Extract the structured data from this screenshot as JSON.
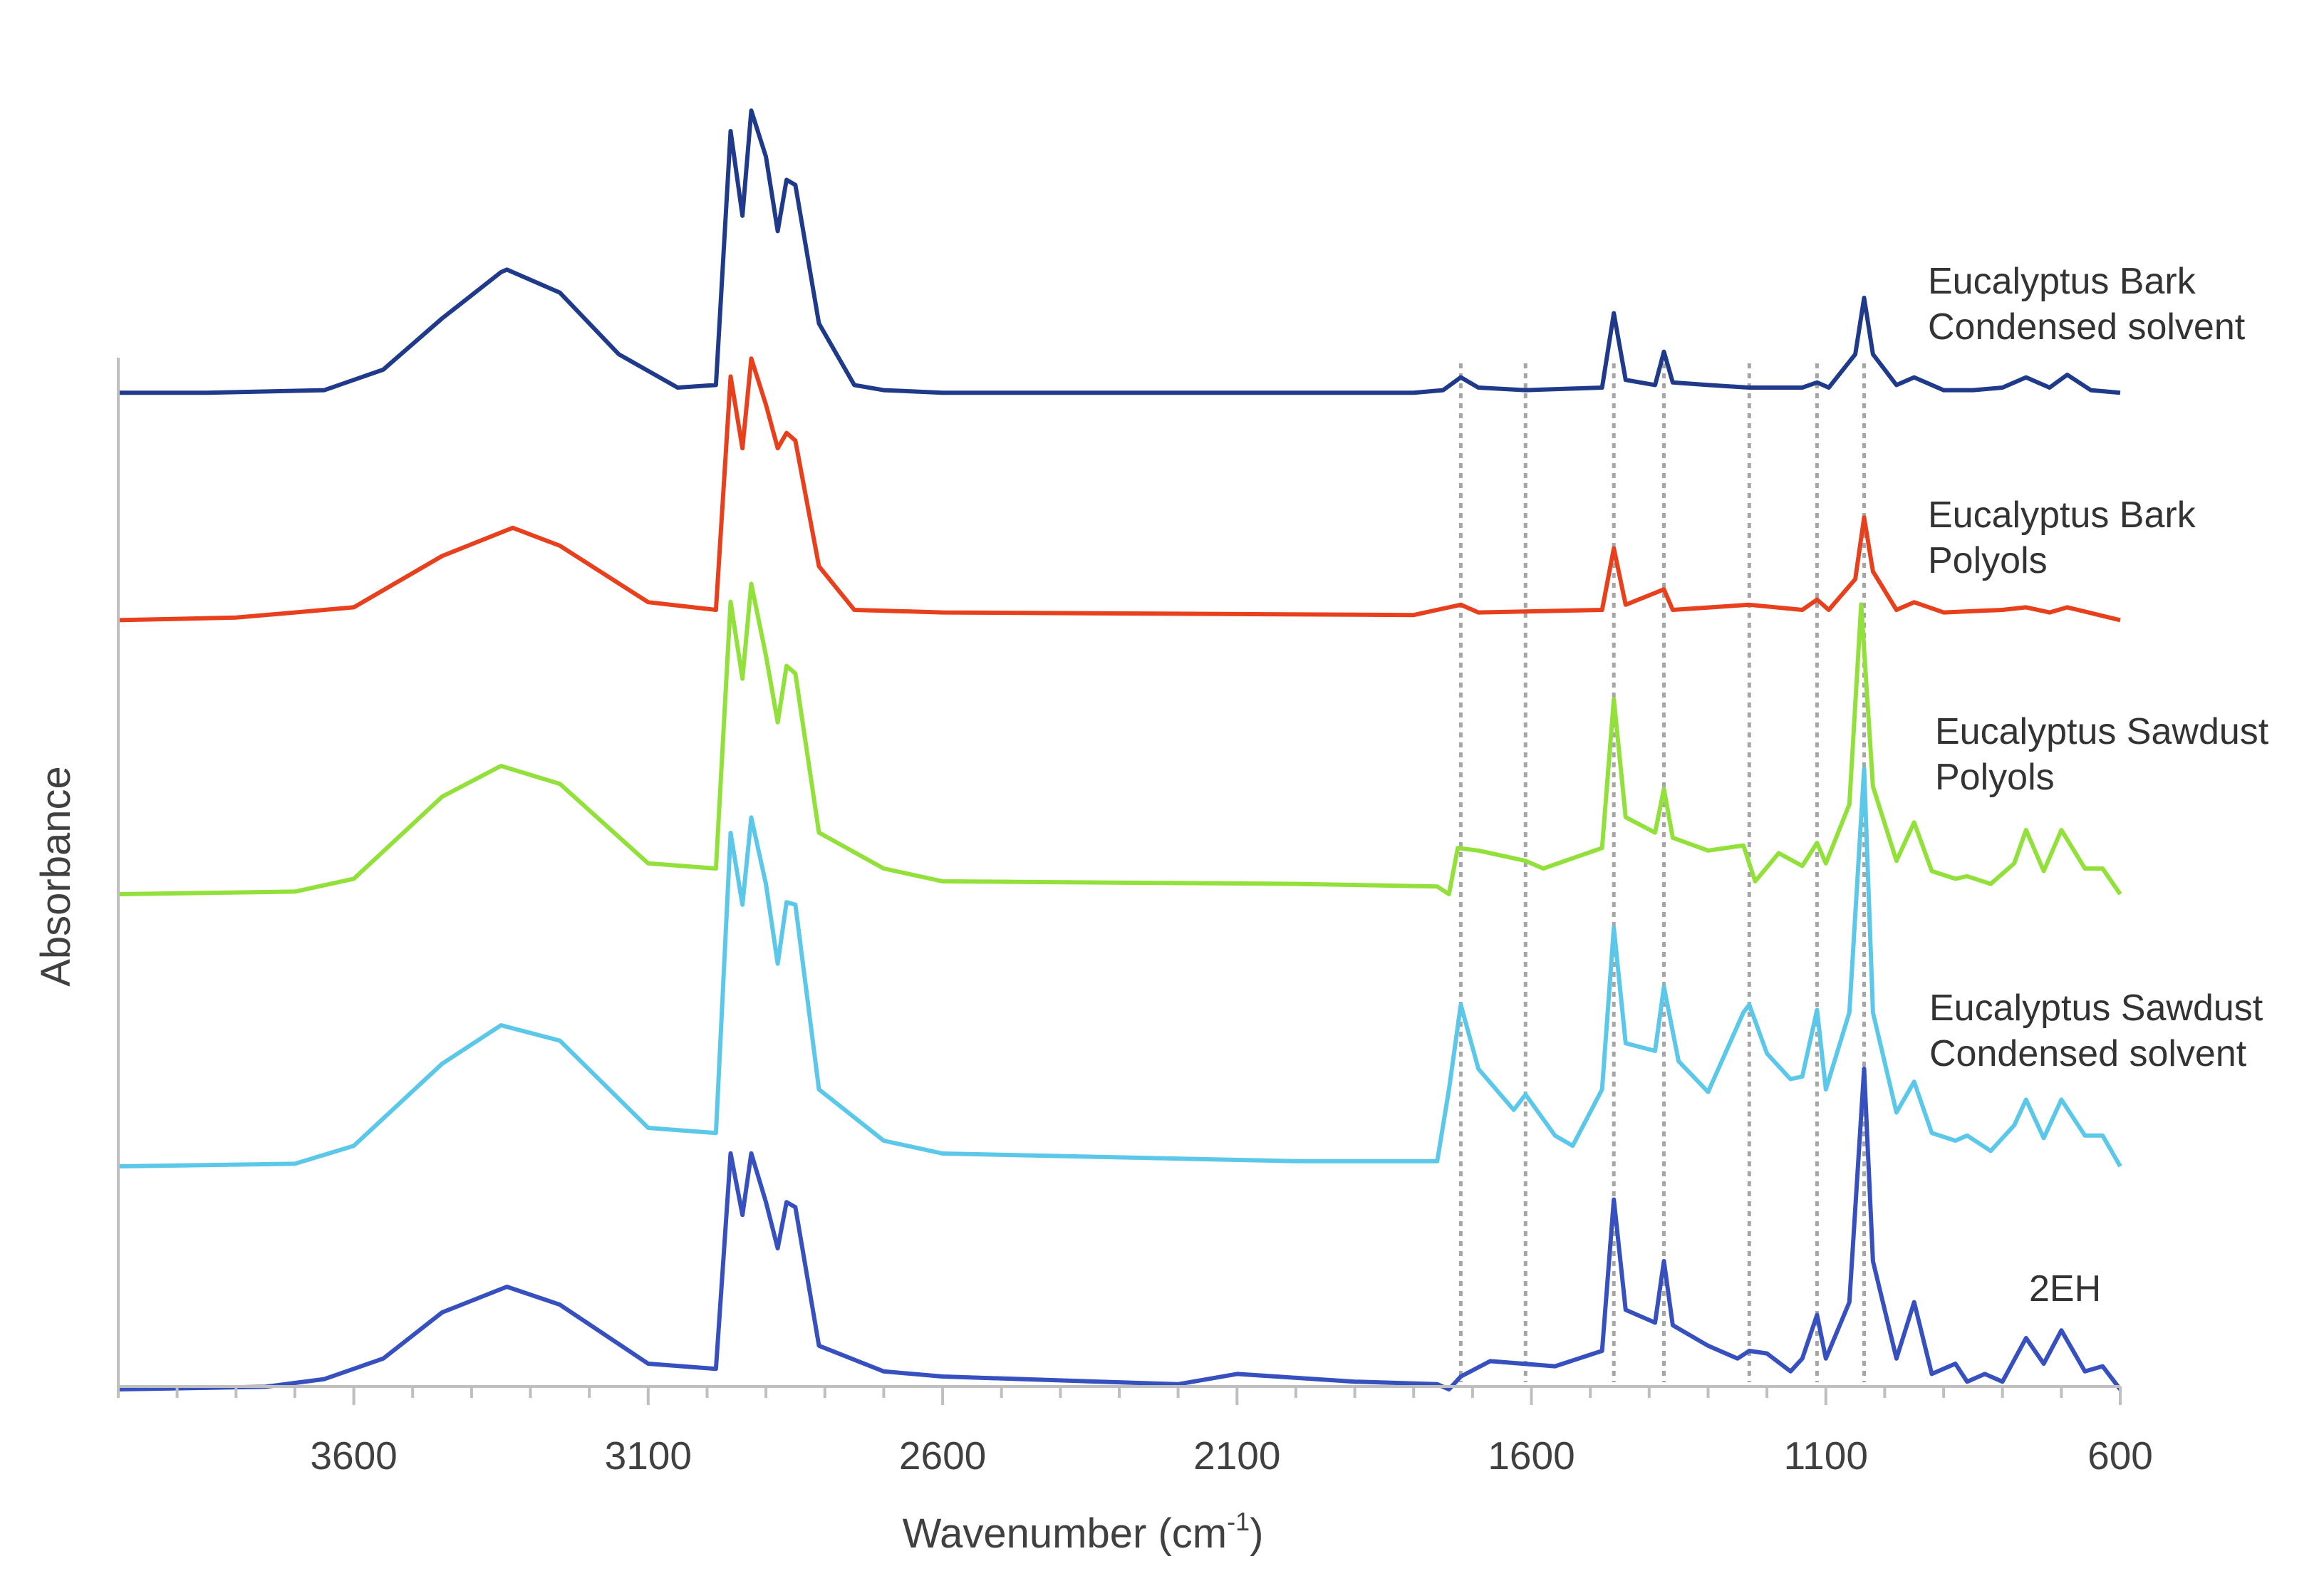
{
  "chart_data": {
    "type": "line",
    "xlabel": "Wavenumber (cm",
    "xlabel_sup": "-1",
    "xlabel_end": ")",
    "ylabel": "Absorbance",
    "xlim": [
      4000,
      600
    ],
    "x_reversed": true,
    "x_ticks": [
      3600,
      3100,
      2600,
      2100,
      1600,
      1100,
      600
    ],
    "x_tick_labels": [
      "3600",
      "3100",
      "2600",
      "2100",
      "1600",
      "1100",
      "600"
    ],
    "y_ticks_shown": false,
    "grid": false,
    "legend": "none (series labelled directly at right end of each trace)",
    "reference_lines_x": [
      1720,
      1610,
      1460,
      1375,
      1230,
      1115,
      1035
    ],
    "series": [
      {
        "name": "Eucalyptus Bark Condensed solvent",
        "label_lines": [
          "Eucalyptus Bark",
          "Condensed solvent"
        ],
        "color": "#1f3a8a",
        "points": [
          [
            4000,
            0.03
          ],
          [
            3850,
            0.03
          ],
          [
            3650,
            0.04
          ],
          [
            3550,
            0.12
          ],
          [
            3450,
            0.32
          ],
          [
            3350,
            0.5
          ],
          [
            3340,
            0.51
          ],
          [
            3250,
            0.42
          ],
          [
            3150,
            0.18
          ],
          [
            3050,
            0.05
          ],
          [
            2985,
            0.06
          ],
          [
            2960,
            1.05
          ],
          [
            2940,
            0.72
          ],
          [
            2925,
            1.13
          ],
          [
            2900,
            0.95
          ],
          [
            2880,
            0.66
          ],
          [
            2865,
            0.86
          ],
          [
            2850,
            0.84
          ],
          [
            2810,
            0.3
          ],
          [
            2750,
            0.06
          ],
          [
            2700,
            0.04
          ],
          [
            2600,
            0.03
          ],
          [
            1800,
            0.03
          ],
          [
            1750,
            0.04
          ],
          [
            1720,
            0.09
          ],
          [
            1690,
            0.05
          ],
          [
            1610,
            0.04
          ],
          [
            1480,
            0.05
          ],
          [
            1460,
            0.34
          ],
          [
            1440,
            0.08
          ],
          [
            1390,
            0.06
          ],
          [
            1375,
            0.19
          ],
          [
            1360,
            0.07
          ],
          [
            1300,
            0.06
          ],
          [
            1230,
            0.05
          ],
          [
            1140,
            0.05
          ],
          [
            1115,
            0.07
          ],
          [
            1095,
            0.05
          ],
          [
            1050,
            0.18
          ],
          [
            1035,
            0.4
          ],
          [
            1020,
            0.18
          ],
          [
            980,
            0.06
          ],
          [
            950,
            0.09
          ],
          [
            900,
            0.04
          ],
          [
            850,
            0.04
          ],
          [
            800,
            0.05
          ],
          [
            760,
            0.09
          ],
          [
            720,
            0.05
          ],
          [
            690,
            0.1
          ],
          [
            650,
            0.04
          ],
          [
            600,
            0.03
          ]
        ]
      },
      {
        "name": "Eucalyptus Bark Polyols",
        "label_lines": [
          "Eucalyptus Bark",
          "Polyols"
        ],
        "color": "#e8401c",
        "points": [
          [
            4000,
            0.01
          ],
          [
            3800,
            0.02
          ],
          [
            3600,
            0.06
          ],
          [
            3450,
            0.26
          ],
          [
            3330,
            0.37
          ],
          [
            3250,
            0.3
          ],
          [
            3100,
            0.08
          ],
          [
            2985,
            0.05
          ],
          [
            2960,
            0.96
          ],
          [
            2940,
            0.68
          ],
          [
            2925,
            1.03
          ],
          [
            2900,
            0.85
          ],
          [
            2880,
            0.68
          ],
          [
            2865,
            0.74
          ],
          [
            2850,
            0.71
          ],
          [
            2810,
            0.22
          ],
          [
            2750,
            0.05
          ],
          [
            2600,
            0.04
          ],
          [
            1800,
            0.03
          ],
          [
            1720,
            0.07
          ],
          [
            1690,
            0.04
          ],
          [
            1480,
            0.05
          ],
          [
            1460,
            0.29
          ],
          [
            1440,
            0.07
          ],
          [
            1375,
            0.13
          ],
          [
            1360,
            0.05
          ],
          [
            1230,
            0.07
          ],
          [
            1140,
            0.05
          ],
          [
            1115,
            0.09
          ],
          [
            1095,
            0.05
          ],
          [
            1050,
            0.17
          ],
          [
            1035,
            0.41
          ],
          [
            1020,
            0.2
          ],
          [
            980,
            0.05
          ],
          [
            950,
            0.08
          ],
          [
            900,
            0.04
          ],
          [
            800,
            0.05
          ],
          [
            760,
            0.06
          ],
          [
            720,
            0.04
          ],
          [
            690,
            0.06
          ],
          [
            600,
            0.01
          ]
        ]
      },
      {
        "name": "Eucalyptus Sawdust Polyols",
        "label_lines": [
          "Eucalyptus Sawdust",
          "Polyols"
        ],
        "color": "#92e03a",
        "points": [
          [
            4000,
            0.0
          ],
          [
            3700,
            0.01
          ],
          [
            3600,
            0.06
          ],
          [
            3450,
            0.38
          ],
          [
            3350,
            0.5
          ],
          [
            3250,
            0.43
          ],
          [
            3100,
            0.12
          ],
          [
            2985,
            0.1
          ],
          [
            2960,
            1.14
          ],
          [
            2940,
            0.84
          ],
          [
            2925,
            1.21
          ],
          [
            2900,
            0.93
          ],
          [
            2880,
            0.67
          ],
          [
            2865,
            0.89
          ],
          [
            2850,
            0.86
          ],
          [
            2810,
            0.24
          ],
          [
            2700,
            0.1
          ],
          [
            2600,
            0.05
          ],
          [
            2000,
            0.04
          ],
          [
            1760,
            0.03
          ],
          [
            1740,
            0.0
          ],
          [
            1725,
            0.18
          ],
          [
            1690,
            0.17
          ],
          [
            1610,
            0.13
          ],
          [
            1580,
            0.1
          ],
          [
            1480,
            0.18
          ],
          [
            1460,
            0.76
          ],
          [
            1440,
            0.3
          ],
          [
            1390,
            0.24
          ],
          [
            1375,
            0.41
          ],
          [
            1360,
            0.22
          ],
          [
            1300,
            0.17
          ],
          [
            1240,
            0.19
          ],
          [
            1220,
            0.05
          ],
          [
            1180,
            0.16
          ],
          [
            1140,
            0.11
          ],
          [
            1115,
            0.2
          ],
          [
            1100,
            0.12
          ],
          [
            1060,
            0.35
          ],
          [
            1040,
            1.13
          ],
          [
            1020,
            0.42
          ],
          [
            980,
            0.13
          ],
          [
            950,
            0.28
          ],
          [
            920,
            0.09
          ],
          [
            880,
            0.06
          ],
          [
            860,
            0.07
          ],
          [
            820,
            0.04
          ],
          [
            780,
            0.12
          ],
          [
            760,
            0.25
          ],
          [
            730,
            0.09
          ],
          [
            700,
            0.25
          ],
          [
            660,
            0.1
          ],
          [
            630,
            0.1
          ],
          [
            600,
            0.0
          ]
        ]
      },
      {
        "name": "Eucalyptus Sawdust Condensed solvent",
        "label_lines": [
          "Eucalyptus Sawdust",
          "Condensed solvent"
        ],
        "color": "#5bc8ea",
        "points": [
          [
            4000,
            0.0
          ],
          [
            3700,
            0.01
          ],
          [
            3600,
            0.08
          ],
          [
            3450,
            0.4
          ],
          [
            3350,
            0.55
          ],
          [
            3250,
            0.49
          ],
          [
            3100,
            0.15
          ],
          [
            2985,
            0.13
          ],
          [
            2960,
            1.3
          ],
          [
            2940,
            1.02
          ],
          [
            2925,
            1.36
          ],
          [
            2900,
            1.1
          ],
          [
            2880,
            0.79
          ],
          [
            2865,
            1.03
          ],
          [
            2850,
            1.02
          ],
          [
            2810,
            0.3
          ],
          [
            2700,
            0.1
          ],
          [
            2600,
            0.05
          ],
          [
            2000,
            0.02
          ],
          [
            1760,
            0.02
          ],
          [
            1740,
            0.3
          ],
          [
            1720,
            0.63
          ],
          [
            1690,
            0.38
          ],
          [
            1630,
            0.22
          ],
          [
            1610,
            0.28
          ],
          [
            1560,
            0.12
          ],
          [
            1530,
            0.08
          ],
          [
            1480,
            0.3
          ],
          [
            1460,
            0.93
          ],
          [
            1440,
            0.48
          ],
          [
            1390,
            0.45
          ],
          [
            1375,
            0.7
          ],
          [
            1350,
            0.41
          ],
          [
            1300,
            0.29
          ],
          [
            1240,
            0.6
          ],
          [
            1230,
            0.63
          ],
          [
            1200,
            0.44
          ],
          [
            1160,
            0.34
          ],
          [
            1140,
            0.35
          ],
          [
            1115,
            0.61
          ],
          [
            1100,
            0.3
          ],
          [
            1060,
            0.6
          ],
          [
            1035,
            1.55
          ],
          [
            1020,
            0.6
          ],
          [
            980,
            0.21
          ],
          [
            950,
            0.33
          ],
          [
            920,
            0.13
          ],
          [
            880,
            0.1
          ],
          [
            860,
            0.12
          ],
          [
            820,
            0.06
          ],
          [
            780,
            0.16
          ],
          [
            760,
            0.26
          ],
          [
            730,
            0.11
          ],
          [
            700,
            0.26
          ],
          [
            660,
            0.12
          ],
          [
            630,
            0.12
          ],
          [
            600,
            0.0
          ]
        ]
      },
      {
        "name": "2EH",
        "label_lines": [
          "2EH"
        ],
        "color": "#3650bf",
        "points": [
          [
            4000,
            0.0
          ],
          [
            3750,
            0.01
          ],
          [
            3650,
            0.04
          ],
          [
            3550,
            0.12
          ],
          [
            3450,
            0.3
          ],
          [
            3340,
            0.4
          ],
          [
            3250,
            0.33
          ],
          [
            3100,
            0.1
          ],
          [
            2985,
            0.08
          ],
          [
            2960,
            0.92
          ],
          [
            2940,
            0.68
          ],
          [
            2925,
            0.92
          ],
          [
            2900,
            0.73
          ],
          [
            2880,
            0.55
          ],
          [
            2865,
            0.73
          ],
          [
            2850,
            0.71
          ],
          [
            2810,
            0.17
          ],
          [
            2700,
            0.07
          ],
          [
            2600,
            0.05
          ],
          [
            2200,
            0.02
          ],
          [
            2100,
            0.06
          ],
          [
            1900,
            0.03
          ],
          [
            1760,
            0.02
          ],
          [
            1740,
            0.0
          ],
          [
            1720,
            0.05
          ],
          [
            1670,
            0.11
          ],
          [
            1560,
            0.09
          ],
          [
            1480,
            0.15
          ],
          [
            1460,
            0.74
          ],
          [
            1440,
            0.31
          ],
          [
            1390,
            0.26
          ],
          [
            1375,
            0.5
          ],
          [
            1360,
            0.25
          ],
          [
            1300,
            0.17
          ],
          [
            1250,
            0.12
          ],
          [
            1230,
            0.15
          ],
          [
            1200,
            0.14
          ],
          [
            1160,
            0.07
          ],
          [
            1140,
            0.12
          ],
          [
            1115,
            0.29
          ],
          [
            1100,
            0.12
          ],
          [
            1060,
            0.34
          ],
          [
            1035,
            1.25
          ],
          [
            1020,
            0.5
          ],
          [
            980,
            0.12
          ],
          [
            950,
            0.34
          ],
          [
            920,
            0.06
          ],
          [
            880,
            0.1
          ],
          [
            860,
            0.03
          ],
          [
            830,
            0.06
          ],
          [
            800,
            0.03
          ],
          [
            760,
            0.2
          ],
          [
            730,
            0.1
          ],
          [
            700,
            0.23
          ],
          [
            660,
            0.07
          ],
          [
            630,
            0.09
          ],
          [
            600,
            0.0
          ]
        ]
      }
    ]
  }
}
